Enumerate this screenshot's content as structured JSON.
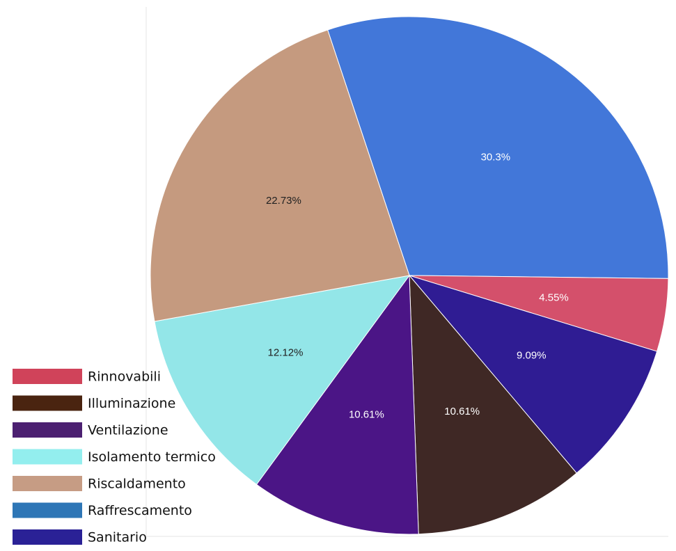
{
  "chart_data": {
    "type": "pie",
    "title": "",
    "slices": [
      {
        "label": "Raffrescamento",
        "value": 30.3,
        "display": "30.3%",
        "color": "#4277d9",
        "text_color": "#ffffff"
      },
      {
        "label": "Rinnovabili",
        "value": 4.55,
        "display": "4.55%",
        "color": "#d4506b",
        "text_color": "#ffffff"
      },
      {
        "label": "Sanitario",
        "value": 9.09,
        "display": "9.09%",
        "color": "#2f1c93",
        "text_color": "#ffffff"
      },
      {
        "label": "Illuminazione",
        "value": 10.61,
        "display": "10.61%",
        "color": "#3f2825",
        "text_color": "#ffffff"
      },
      {
        "label": "Ventilazione",
        "value": 10.61,
        "display": "10.61%",
        "color": "#4b1586",
        "text_color": "#ffffff"
      },
      {
        "label": "Isolamento termico",
        "value": 12.12,
        "display": "12.12%",
        "color": "#93e6e8",
        "text_color": "#222222"
      },
      {
        "label": "Riscaldamento",
        "value": 22.73,
        "display": "22.73%",
        "color": "#c59a7f",
        "text_color": "#222222"
      }
    ],
    "legend": {
      "placement": "bottom-left",
      "items": [
        {
          "label": "Rinnovabili",
          "color": "#d0435a"
        },
        {
          "label": "Illuminazione",
          "color": "#4a2410"
        },
        {
          "label": "Ventilazione",
          "color": "#4c2071"
        },
        {
          "label": "Isolamento termico",
          "color": "#93eeee"
        },
        {
          "label": "Riscaldamento",
          "color": "#c69c84"
        },
        {
          "label": "Raffrescamento",
          "color": "#2e76b6"
        },
        {
          "label": "Sanitario",
          "color": "#2a2196"
        }
      ]
    }
  }
}
